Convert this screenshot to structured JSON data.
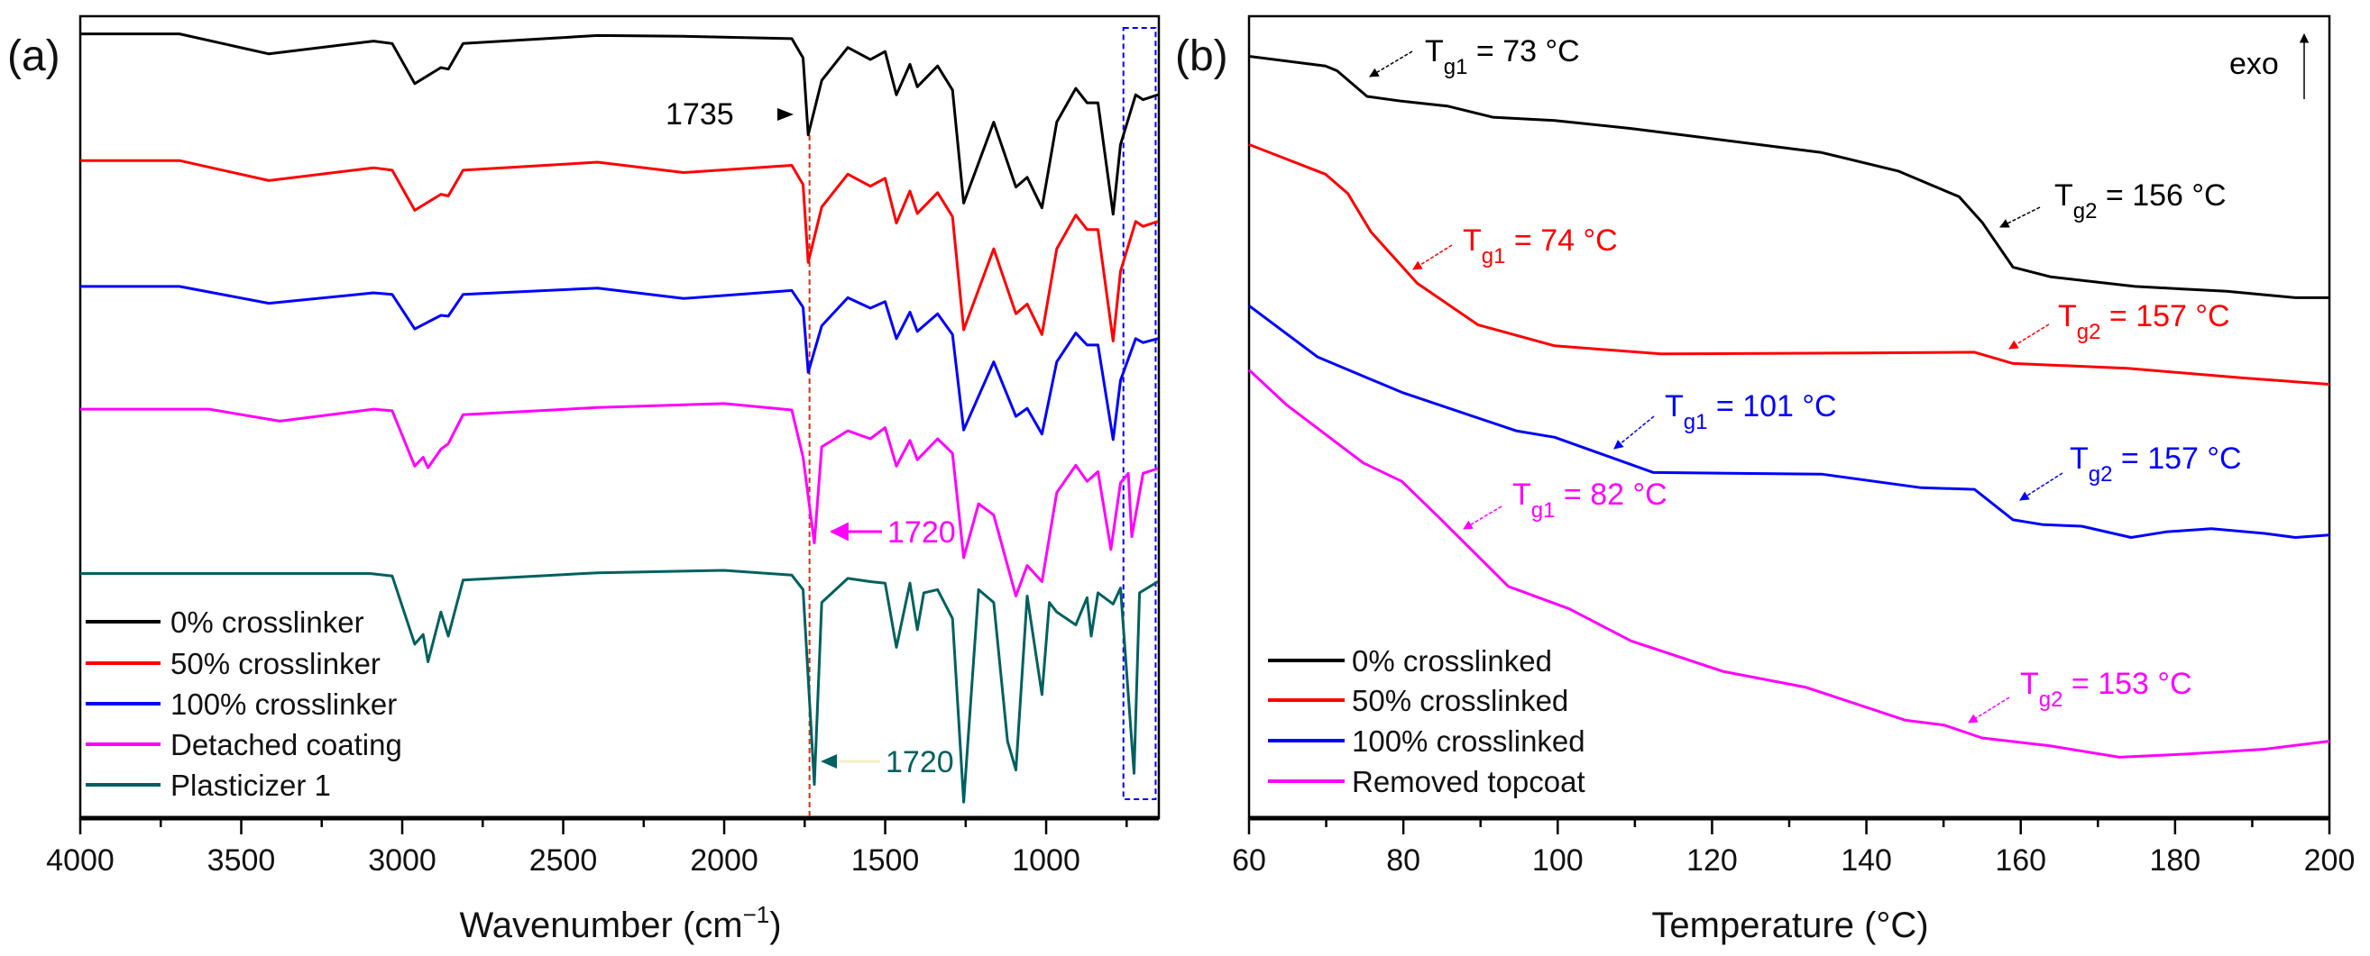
{
  "chart_data": [
    {
      "type": "line",
      "panel_label": "(a)",
      "title": "",
      "xlabel": "Wavenumber (cm",
      "xlabel_sup": "−1",
      "xlabel_end": ")",
      "ylabel": "",
      "xlim": [
        4000,
        650
      ],
      "ylim": [
        0,
        100
      ],
      "x_ticks": [
        4000,
        3500,
        3000,
        2500,
        2000,
        1500,
        1000
      ],
      "x_minor_step": 250,
      "y_units": "transmittance, arbitrary offset units",
      "grid": false,
      "legend_position": "bottom-left",
      "series": [
        {
          "name": "0% crosslinker",
          "color": "#000000",
          "x": [
            4000,
            3692,
            3414,
            3089,
            3031,
            2961,
            2880,
            2857,
            2811,
            2393,
            2126,
            1790,
            1755,
            1739,
            1697,
            1616,
            1546,
            1500,
            1465,
            1423,
            1400,
            1337,
            1291,
            1256,
            1163,
            1094,
            1059,
            1013,
            967,
            908,
            873,
            839,
            792,
            769,
            722,
            699,
            653
          ],
          "y": [
            97.8,
            97.8,
            95.3,
            96.9,
            96.6,
            91.6,
            93.6,
            93.4,
            96.6,
            97.6,
            97.5,
            97.2,
            94.8,
            85.2,
            92,
            96.1,
            94.6,
            95.6,
            90.2,
            94,
            91.2,
            93.8,
            90.8,
            76.7,
            86.8,
            78.7,
            79.9,
            76.1,
            86.8,
            91,
            89.2,
            89.2,
            75.3,
            84,
            90.2,
            89.6,
            90.2
          ]
        },
        {
          "name": "50% crosslinker",
          "color": "#ff0000",
          "x": [
            4000,
            3692,
            3414,
            3089,
            3031,
            2961,
            2880,
            2857,
            2811,
            2393,
            2126,
            1790,
            1755,
            1739,
            1697,
            1616,
            1546,
            1500,
            1465,
            1423,
            1400,
            1337,
            1291,
            1256,
            1163,
            1094,
            1059,
            1013,
            967,
            908,
            873,
            839,
            792,
            769,
            722,
            699,
            653
          ],
          "y": [
            82,
            82,
            79.5,
            81.1,
            80.8,
            75.8,
            77.8,
            77.6,
            80.8,
            81.8,
            80.5,
            81.4,
            79,
            69.3,
            76.2,
            80.3,
            78.8,
            79.8,
            74.2,
            78.2,
            75.4,
            78,
            75,
            60.9,
            71,
            62.9,
            64.1,
            60.3,
            71,
            75.2,
            73.4,
            73.4,
            59.5,
            68.2,
            74.4,
            73.8,
            74.4
          ]
        },
        {
          "name": "100% crosslinker",
          "color": "#0000ff",
          "x": [
            4000,
            3692,
            3414,
            3089,
            3031,
            2961,
            2880,
            2857,
            2811,
            2393,
            2126,
            1790,
            1755,
            1739,
            1697,
            1616,
            1546,
            1500,
            1465,
            1423,
            1400,
            1337,
            1291,
            1256,
            1163,
            1094,
            1059,
            1013,
            967,
            908,
            873,
            839,
            792,
            769,
            722,
            699,
            653
          ],
          "y": [
            66.3,
            66.3,
            64.2,
            65.5,
            65.3,
            61,
            62.7,
            62.6,
            65.3,
            66.1,
            64.8,
            65.8,
            63.7,
            55.6,
            61.4,
            64.9,
            63.6,
            64.4,
            59.8,
            63.1,
            60.7,
            62.9,
            60.3,
            48.4,
            56.9,
            50.1,
            51.1,
            47.9,
            56.9,
            60.5,
            59,
            59,
            47.2,
            54.6,
            59.8,
            59.3,
            59.8
          ]
        },
        {
          "name": "Detached coating",
          "color": "#ff00ff",
          "x": [
            4000,
            3600,
            3380,
            3089,
            3031,
            2961,
            2935,
            2920,
            2880,
            2857,
            2811,
            2393,
            2000,
            1790,
            1755,
            1720,
            1697,
            1616,
            1546,
            1500,
            1465,
            1423,
            1400,
            1337,
            1291,
            1256,
            1210,
            1163,
            1094,
            1059,
            1013,
            967,
            908,
            873,
            839,
            799,
            769,
            745,
            734,
            699,
            653
          ],
          "y": [
            51,
            51,
            49.5,
            51,
            50.8,
            43.9,
            45,
            43.7,
            46,
            46.7,
            50.3,
            51.2,
            51.7,
            50.9,
            45,
            34.3,
            46.3,
            48.3,
            47.3,
            48.7,
            43.9,
            47.1,
            44.7,
            47.3,
            45.5,
            32.5,
            39.2,
            37.8,
            27.7,
            31.5,
            29.5,
            40.6,
            44,
            42,
            43.2,
            33.5,
            41.8,
            43,
            35.1,
            43,
            43.6
          ]
        },
        {
          "name": "Plasticizer 1",
          "color": "#006060",
          "x": [
            4000,
            3100,
            3031,
            2961,
            2935,
            2920,
            2880,
            2857,
            2811,
            2393,
            2000,
            1790,
            1755,
            1720,
            1697,
            1616,
            1546,
            1500,
            1465,
            1423,
            1400,
            1380,
            1337,
            1291,
            1256,
            1210,
            1163,
            1120,
            1094,
            1059,
            1013,
            990,
            967,
            908,
            873,
            860,
            839,
            792,
            769,
            727,
            710,
            653
          ],
          "y": [
            30.5,
            30.5,
            30.2,
            21.7,
            22.9,
            19.5,
            25.7,
            22.7,
            29.7,
            30.6,
            30.9,
            30.3,
            28.5,
            4.2,
            26.9,
            29.9,
            29.5,
            29.3,
            21.3,
            29.3,
            23.5,
            28.1,
            28.5,
            24.9,
            2,
            28.5,
            26.9,
            9.6,
            6,
            27.7,
            15.4,
            26.9,
            25.7,
            24.1,
            27.5,
            22.7,
            28.1,
            26.7,
            28.7,
            5.6,
            28.1,
            29.5
          ]
        }
      ],
      "annotations": [
        {
          "text": "1735",
          "color": "#000000"
        },
        {
          "text": "1720",
          "color": "#ff00ff"
        },
        {
          "text": "1720",
          "color": "#006060"
        }
      ],
      "reference_line_x": 1735,
      "highlight_box_x": [
        760,
        660
      ]
    },
    {
      "type": "line",
      "panel_label": "(b)",
      "title": "",
      "xlabel": "Temperature (°C)",
      "ylabel": "",
      "xlim": [
        60,
        200
      ],
      "ylim": [
        0,
        100
      ],
      "x_ticks": [
        60,
        80,
        100,
        120,
        140,
        160,
        180,
        200
      ],
      "x_minor_step": 10,
      "y_units": "heat flow, arbitrary offset units",
      "direction_label": "exo",
      "grid": false,
      "legend_position": "bottom-left",
      "series": [
        {
          "name": "0% crosslinked",
          "color": "#000000",
          "x": [
            60,
            69.9,
            71.4,
            75.3,
            79.8,
            85.7,
            91.6,
            99.6,
            109.5,
            119.4,
            134.2,
            144.1,
            152,
            155,
            159,
            163.9,
            174.8,
            186.7,
            195.6,
            200
          ],
          "y": [
            95,
            93.8,
            93.2,
            90,
            89.4,
            88.8,
            87.4,
            87,
            86,
            84.8,
            83,
            80.7,
            77.5,
            74.3,
            68.7,
            67.5,
            66.3,
            65.7,
            64.9,
            64.9
          ]
        },
        {
          "name": "50% crosslinked",
          "color": "#ff0000",
          "x": [
            60,
            69.9,
            72.8,
            75.8,
            81.8,
            89.7,
            99.6,
            113.4,
            139.2,
            154,
            159,
            173.8,
            188.7,
            200
          ],
          "y": [
            84,
            80.3,
            77.9,
            73.1,
            66.7,
            61.5,
            58.9,
            57.9,
            58,
            58.1,
            56.7,
            56.1,
            54.9,
            54.1
          ]
        },
        {
          "name": "100% crosslinked",
          "color": "#0000ff",
          "x": [
            60,
            68.9,
            79.8,
            94.6,
            99.6,
            112.4,
            134.2,
            147.1,
            154,
            159,
            162.9,
            167.9,
            174.3,
            178.8,
            184.7,
            191.6,
            195.6,
            200
          ],
          "y": [
            63.9,
            57.5,
            53.1,
            48.3,
            47.5,
            43.1,
            42.9,
            41.2,
            41,
            37.2,
            36.6,
            36.4,
            35,
            35.7,
            36.1,
            35.5,
            35,
            35.3
          ]
        },
        {
          "name": "Removed topcoat",
          "color": "#ff00ff",
          "x": [
            60,
            64.9,
            74.8,
            79.8,
            84.7,
            93.6,
            101.5,
            109.5,
            121.4,
            132.2,
            145.1,
            150.1,
            155,
            163.9,
            172.8,
            181.7,
            191.6,
            200
          ],
          "y": [
            55.9,
            51.5,
            44.3,
            42,
            37.4,
            28.9,
            26.1,
            22.1,
            18.3,
            16.3,
            12.2,
            11.6,
            10,
            9,
            7.6,
            8,
            8.6,
            9.6
          ]
        }
      ],
      "annotations": [
        {
          "T": "T",
          "sub": "g1",
          "value": " = 73 °C",
          "color": "#000000"
        },
        {
          "T": "T",
          "sub": "g2",
          "value": " = 156 °C",
          "color": "#000000"
        },
        {
          "T": "T",
          "sub": "g1",
          "value": " = 74 °C",
          "color": "#ff0000"
        },
        {
          "T": "T",
          "sub": "g2",
          "value": " = 157 °C",
          "color": "#ff0000"
        },
        {
          "T": "T",
          "sub": "g1",
          "value": " = 101 °C",
          "color": "#0000ff"
        },
        {
          "T": "T",
          "sub": "g2",
          "value": " = 157 °C",
          "color": "#0000ff"
        },
        {
          "T": "T",
          "sub": "g1",
          "value": " = 82 °C",
          "color": "#ff00ff"
        },
        {
          "T": "T",
          "sub": "g2",
          "value": " = 153 °C",
          "color": "#ff00ff"
        }
      ]
    }
  ]
}
